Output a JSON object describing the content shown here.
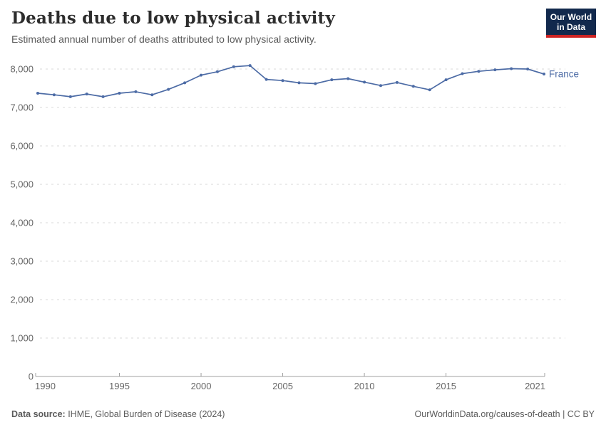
{
  "header": {
    "title": "Deaths due to low physical activity",
    "subtitle": "Estimated annual number of deaths attributed to low physical activity."
  },
  "logo": {
    "line1": "Our World",
    "line2": "in Data",
    "bg_color": "#12294d",
    "accent_color": "#cd2323"
  },
  "chart_data": {
    "type": "line",
    "title": "Deaths due to low physical activity",
    "subtitle": "Estimated annual number of deaths attributed to low physical activity.",
    "x": [
      1990,
      1991,
      1992,
      1993,
      1994,
      1995,
      1996,
      1997,
      1998,
      1999,
      2000,
      2001,
      2002,
      2003,
      2004,
      2005,
      2006,
      2007,
      2008,
      2009,
      2010,
      2011,
      2012,
      2013,
      2014,
      2015,
      2016,
      2017,
      2018,
      2019,
      2020,
      2021
    ],
    "series": [
      {
        "name": "France",
        "color": "#4c6ba5",
        "values": [
          7370,
          7330,
          7280,
          7350,
          7280,
          7370,
          7410,
          7330,
          7470,
          7640,
          7840,
          7930,
          8060,
          8090,
          7730,
          7700,
          7640,
          7620,
          7720,
          7750,
          7660,
          7570,
          7650,
          7550,
          7460,
          7720,
          7880,
          7940,
          7980,
          8010,
          8000,
          7870
        ]
      }
    ],
    "xlabel": "",
    "ylabel": "",
    "xlim": [
      1990,
      2021
    ],
    "ylim": [
      0,
      8000
    ],
    "xticks": [
      1990,
      1995,
      2000,
      2005,
      2010,
      2015,
      2021
    ],
    "xtick_labels": [
      "1990",
      "1995",
      "2000",
      "2005",
      "2010",
      "2015",
      "2021"
    ],
    "yticks": [
      0,
      1000,
      2000,
      3000,
      4000,
      5000,
      6000,
      7000,
      8000
    ],
    "ytick_labels": [
      "0",
      "1,000",
      "2,000",
      "3,000",
      "4,000",
      "5,000",
      "6,000",
      "7,000",
      "8,000"
    ],
    "grid": "horizontal-dashed",
    "legend": "end-of-line-label",
    "colors": {
      "line": "#4c6ba5",
      "grid": "#dadada",
      "axis": "#a0a0a0",
      "tick_text": "#666666"
    }
  },
  "footer": {
    "source_label": "Data source:",
    "source_text": " IHME, Global Burden of Disease (2024)",
    "url_text": "OurWorldinData.org/causes-of-death",
    "license_suffix": " | CC BY"
  }
}
